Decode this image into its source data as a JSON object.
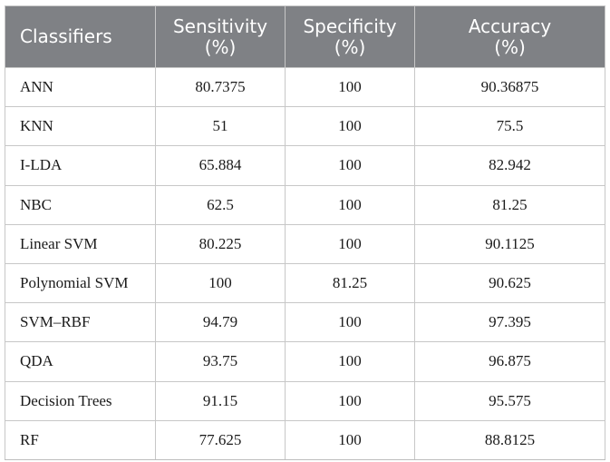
{
  "table": {
    "headers": [
      {
        "line1": "Classifiers",
        "line2": ""
      },
      {
        "line1": "Sensitivity",
        "line2": "(%)"
      },
      {
        "line1": "Specificity",
        "line2": "(%)"
      },
      {
        "line1": "Accuracy",
        "line2": "(%)"
      }
    ],
    "rows": [
      {
        "classifier": "ANN",
        "sensitivity": "80.7375",
        "specificity": "100",
        "accuracy": "90.36875"
      },
      {
        "classifier": "KNN",
        "sensitivity": "51",
        "specificity": "100",
        "accuracy": "75.5"
      },
      {
        "classifier": "I-LDA",
        "sensitivity": "65.884",
        "specificity": "100",
        "accuracy": "82.942"
      },
      {
        "classifier": "NBC",
        "sensitivity": "62.5",
        "specificity": "100",
        "accuracy": "81.25"
      },
      {
        "classifier": "Linear SVM",
        "sensitivity": "80.225",
        "specificity": "100",
        "accuracy": "90.1125"
      },
      {
        "classifier": "Polynomial SVM",
        "sensitivity": "100",
        "specificity": "81.25",
        "accuracy": "90.625"
      },
      {
        "classifier": "SVM–RBF",
        "sensitivity": "94.79",
        "specificity": "100",
        "accuracy": "97.395"
      },
      {
        "classifier": "QDA",
        "sensitivity": "93.75",
        "specificity": "100",
        "accuracy": "96.875"
      },
      {
        "classifier": "Decision Trees",
        "sensitivity": "91.15",
        "specificity": "100",
        "accuracy": "95.575"
      },
      {
        "classifier": "RF",
        "sensitivity": "77.625",
        "specificity": "100",
        "accuracy": "88.8125"
      }
    ]
  },
  "colors": {
    "header_background": "#7f8185",
    "header_text": "#ffffff",
    "grid_lines": "#c7c7c7"
  }
}
